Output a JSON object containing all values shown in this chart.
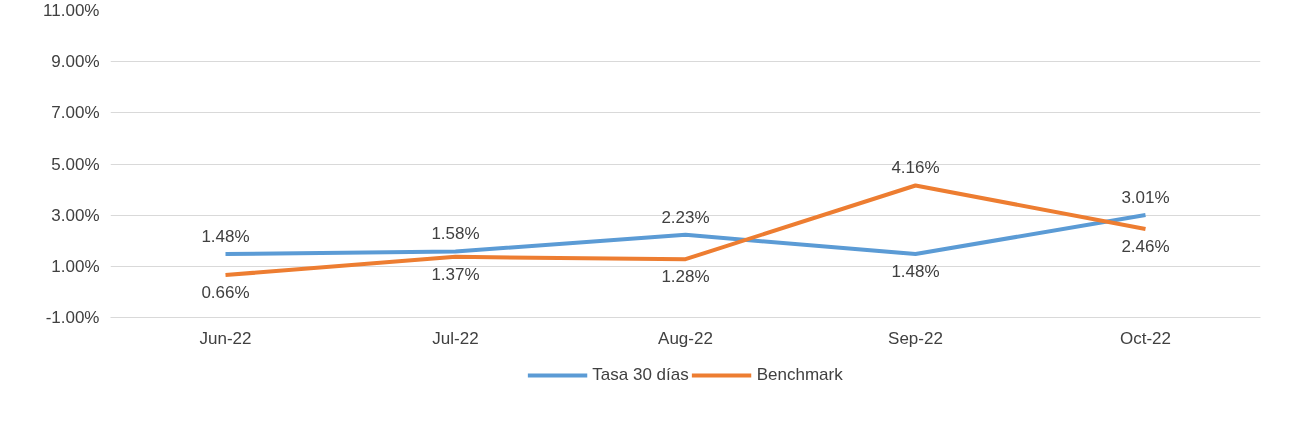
{
  "chart_data": {
    "type": "line",
    "categories": [
      "Jun-22",
      "Jul-22",
      "Aug-22",
      "Sep-22",
      "Oct-22"
    ],
    "series": [
      {
        "name": "Tasa 30 días",
        "color": "#5b9bd5",
        "values": [
          1.48,
          1.58,
          2.23,
          1.48,
          3.01
        ],
        "value_labels": [
          "1.48%",
          "1.58%",
          "2.23%",
          "1.48%",
          "3.01%"
        ]
      },
      {
        "name": "Benchmark",
        "color": "#ed7d31",
        "values": [
          0.66,
          1.37,
          1.28,
          4.16,
          2.46
        ],
        "value_labels": [
          "0.66%",
          "1.37%",
          "1.28%",
          "4.16%",
          "2.46%"
        ]
      }
    ],
    "ylim": [
      -1,
      11
    ],
    "yticks": [
      {
        "value": -1,
        "label": "-1.00%"
      },
      {
        "value": 1,
        "label": "1.00%"
      },
      {
        "value": 3,
        "label": "3.00%"
      },
      {
        "value": 5,
        "label": "5.00%"
      },
      {
        "value": 7,
        "label": "7.00%"
      },
      {
        "value": 9,
        "label": "9.00%"
      },
      {
        "value": 11,
        "label": "11.00%"
      }
    ],
    "grid": "y",
    "legend": "bottom",
    "line_style": "solid",
    "marker": "none"
  }
}
